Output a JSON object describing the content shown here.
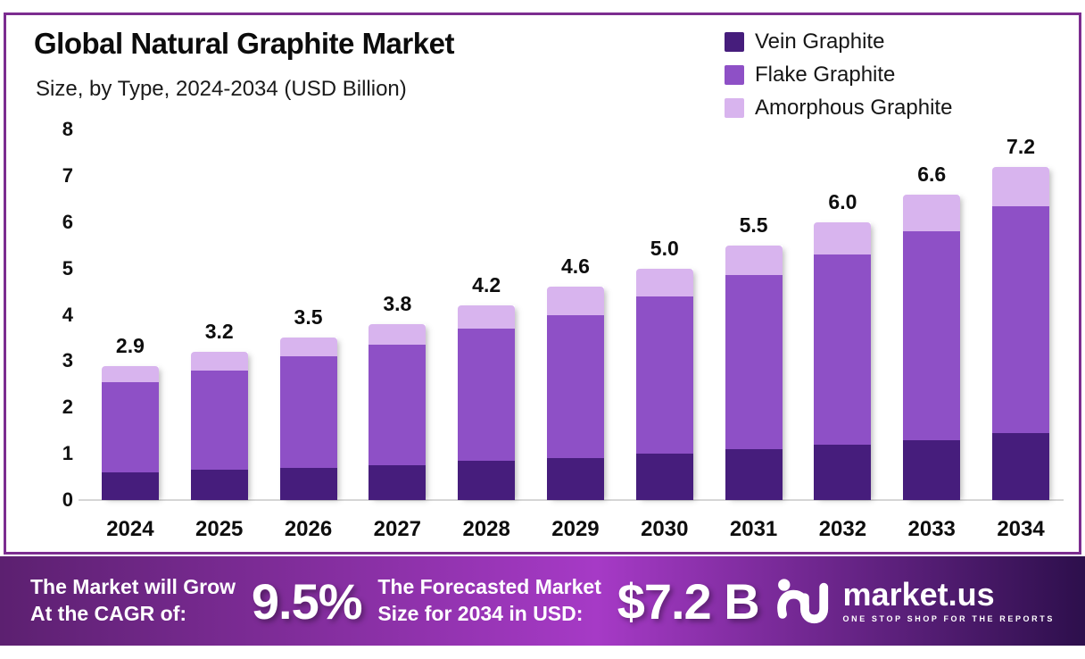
{
  "header": {
    "note": "infographic header"
  },
  "chart_data": {
    "type": "bar",
    "stacked": true,
    "title": "Global Natural Graphite Market",
    "subtitle": "Size, by Type, 2024-2034 (USD Billion)",
    "categories": [
      "2024",
      "2025",
      "2026",
      "2027",
      "2028",
      "2029",
      "2030",
      "2031",
      "2032",
      "2033",
      "2034"
    ],
    "series": [
      {
        "name": "Vein Graphite",
        "color": "#461d7c",
        "values": [
          0.6,
          0.65,
          0.7,
          0.75,
          0.85,
          0.9,
          1.0,
          1.1,
          1.2,
          1.3,
          1.45
        ]
      },
      {
        "name": "Flake Graphite",
        "color": "#8e50c6",
        "values": [
          1.95,
          2.15,
          2.4,
          2.6,
          2.85,
          3.1,
          3.4,
          3.75,
          4.1,
          4.5,
          4.9
        ]
      },
      {
        "name": "Amorphous Graphite",
        "color": "#d8b4ee",
        "values": [
          0.35,
          0.4,
          0.4,
          0.45,
          0.5,
          0.6,
          0.6,
          0.65,
          0.7,
          0.8,
          0.85
        ]
      }
    ],
    "totals": [
      "2.9",
      "3.2",
      "3.5",
      "3.8",
      "4.2",
      "4.6",
      "5.0",
      "5.5",
      "6.0",
      "6.6",
      "7.2"
    ],
    "ylim": [
      0,
      8
    ],
    "yticks": [
      0,
      1,
      2,
      3,
      4,
      5,
      6,
      7,
      8
    ],
    "xlabel": "",
    "ylabel": "",
    "grid": false,
    "legend_position": "top-right"
  },
  "banner": {
    "cagr_label": [
      "The Market will Grow",
      "At the CAGR of:"
    ],
    "cagr_value": "9.5%",
    "forecast_label": [
      "The Forecasted Market",
      "Size for 2034 in USD:"
    ],
    "forecast_value": "$7.2 B",
    "brand": {
      "name": "market.us",
      "tagline": "ONE STOP SHOP FOR THE REPORTS"
    },
    "gradient": [
      "#5c2070",
      "#a63ac6",
      "#2d0f4c"
    ]
  },
  "colors": {
    "frame_border": "#7c2d90",
    "axis_line": "#d6d6d6",
    "text": "#111111",
    "background": "#ffffff"
  }
}
